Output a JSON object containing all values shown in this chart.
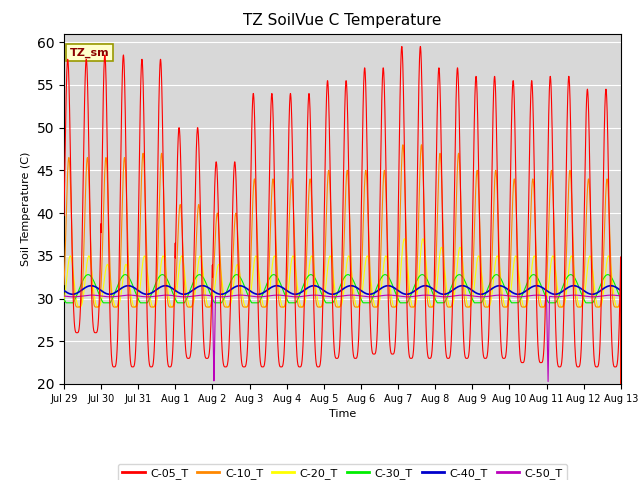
{
  "title": "TZ SoilVue C Temperature",
  "ylabel": "Soil Temperature (C)",
  "xlabel": "Time",
  "annotation_label": "TZ_sm",
  "ylim": [
    20,
    61
  ],
  "yticks": [
    20,
    25,
    30,
    35,
    40,
    45,
    50,
    55,
    60
  ],
  "background_color": "#d8d8d8",
  "fig_facecolor": "#ffffff",
  "series_colors": {
    "C-05_T": "#ff0000",
    "C-10_T": "#ff8800",
    "C-20_T": "#ffff00",
    "C-30_T": "#00ee00",
    "C-40_T": "#0000cc",
    "C-50_T": "#bb00bb"
  },
  "xtick_labels": [
    "Jul 29",
    "Jul 30",
    "Jul 31",
    "Aug 1",
    "Aug 2",
    "Aug 3",
    "Aug 4",
    "Aug 5",
    "Aug 6",
    "Aug 7",
    "Aug 8",
    "Aug 9",
    "Aug 10",
    "Aug 11",
    "Aug 12",
    "Aug 13"
  ],
  "num_days": 15,
  "fig_width": 6.4,
  "fig_height": 4.8,
  "dpi": 100
}
